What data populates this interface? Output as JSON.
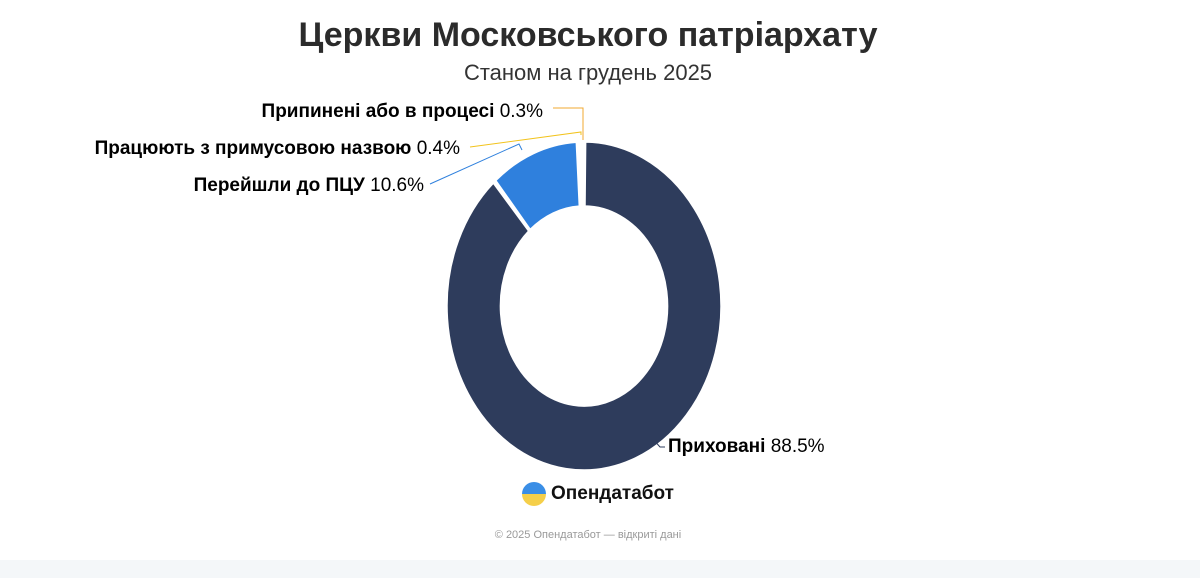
{
  "header": {
    "title": "Церкви Московського патріархату",
    "subtitle": "Станом на грудень 2025"
  },
  "chart_data": {
    "type": "pie",
    "donut": true,
    "title": "Церкви Московського патріархату",
    "subtitle": "Станом на грудень 2025",
    "slices": [
      {
        "name": "Приховані",
        "value": 88.5,
        "label": "88.5%",
        "color": "#2e3c5c"
      },
      {
        "name": "Перейшли до ПЦУ",
        "value": 10.6,
        "label": "10.6%",
        "color": "#2f80dd"
      },
      {
        "name": "Працюють з примусовою назвою",
        "value": 0.4,
        "label": "0.4%",
        "color": "#f2c31c"
      },
      {
        "name": "Припинені або в процесі",
        "value": 0.3,
        "label": "0.3%",
        "color": "#f0a830"
      }
    ]
  },
  "footer": {
    "logo_text": "Опендатабот",
    "copyright": "© 2025 Опендатабот — відкриті дані"
  }
}
